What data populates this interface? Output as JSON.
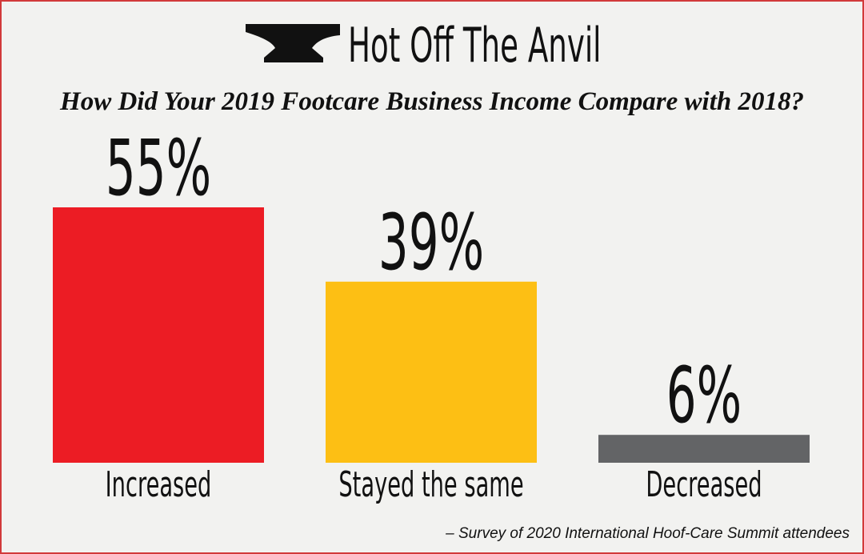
{
  "chart_data": {
    "type": "bar",
    "title": "Hot Off The Anvil",
    "subtitle": "How Did Your 2019 Footcare Business Income Compare with 2018?",
    "categories": [
      "Increased",
      "Stayed the same",
      "Decreased"
    ],
    "values": [
      55,
      39,
      6
    ],
    "value_labels": [
      "55%",
      "39%",
      "6%"
    ],
    "colors": [
      "#ec1c24",
      "#fdbf14",
      "#636466"
    ],
    "note": "– Survey of 2020 International Hoof-Care Summit attendees"
  }
}
